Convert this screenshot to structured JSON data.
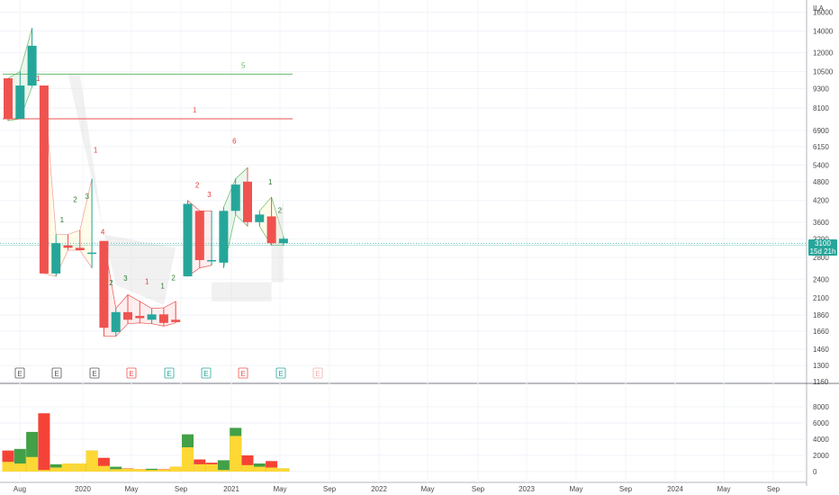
{
  "header": {
    "currency": "ILA"
  },
  "current_price": {
    "price": "3100",
    "countdown": "15d 21h"
  },
  "price_axis_ticks": [
    "16000",
    "14000",
    "12000",
    "10500",
    "9300",
    "8100",
    "6900",
    "6150",
    "5400",
    "4800",
    "4200",
    "3600",
    "3200",
    "2800",
    "2400",
    "2100",
    "1860",
    "1660",
    "1460",
    "1300",
    "1160"
  ],
  "volume_axis_ticks": [
    "8000",
    "6000",
    "4000",
    "2000",
    "0"
  ],
  "time_axis_labels": [
    "Aug",
    "2020",
    "May",
    "Sep",
    "2021",
    "May",
    "Sep",
    "2022",
    "May",
    "Sep",
    "2023",
    "May",
    "Sep",
    "2024",
    "May",
    "Sep"
  ],
  "earnings_markers": [
    {
      "label": "E",
      "kind": "neutral"
    },
    {
      "label": "E",
      "kind": "neutral"
    },
    {
      "label": "E",
      "kind": "neutral"
    },
    {
      "label": "E",
      "kind": "miss"
    },
    {
      "label": "E",
      "kind": "beat"
    },
    {
      "label": "E",
      "kind": "beat"
    },
    {
      "label": "E",
      "kind": "miss"
    },
    {
      "label": "E",
      "kind": "beat"
    },
    {
      "label": "E",
      "kind": "future"
    }
  ],
  "colors": {
    "up": "#26a69a",
    "down": "#ef5350",
    "vol_up": "#43a047",
    "vol_down": "#f44336",
    "vol_base": "#fdd835",
    "level_green": "#66bb6a",
    "level_red": "#ef5350"
  },
  "chart_data": {
    "type": "candlestick",
    "price_axis": "log",
    "ylim": [
      1160,
      17000
    ],
    "candles": [
      {
        "o": 10000,
        "h": 10000,
        "l": 7400,
        "c": 7500
      },
      {
        "o": 7500,
        "h": 10500,
        "l": 7500,
        "c": 9500
      },
      {
        "o": 9500,
        "h": 14300,
        "l": 9400,
        "c": 12600
      },
      {
        "o": 9500,
        "h": 9500,
        "l": 2500,
        "c": 2500
      },
      {
        "o": 2500,
        "h": 3300,
        "l": 2450,
        "c": 3100
      },
      {
        "o": 3050,
        "h": 3300,
        "l": 2950,
        "c": 3000
      },
      {
        "o": 3000,
        "h": 3400,
        "l": 2950,
        "c": 2950
      },
      {
        "o": 2900,
        "h": 4900,
        "l": 2600,
        "c": 2900
      },
      {
        "o": 3150,
        "h": 3150,
        "l": 1600,
        "c": 1700
      },
      {
        "o": 1650,
        "h": 1950,
        "l": 1600,
        "c": 1900
      },
      {
        "o": 1900,
        "h": 2150,
        "l": 1750,
        "c": 1800
      },
      {
        "o": 1850,
        "h": 2050,
        "l": 1760,
        "c": 1820
      },
      {
        "o": 1800,
        "h": 1950,
        "l": 1750,
        "c": 1870
      },
      {
        "o": 1870,
        "h": 1960,
        "l": 1720,
        "c": 1760
      },
      {
        "o": 1800,
        "h": 2050,
        "l": 1760,
        "c": 1770
      },
      {
        "o": 2450,
        "h": 4200,
        "l": 2450,
        "c": 4100
      },
      {
        "o": 3900,
        "h": 3900,
        "l": 2600,
        "c": 2750
      },
      {
        "o": 2750,
        "h": 3900,
        "l": 2650,
        "c": 2750
      },
      {
        "o": 2700,
        "h": 4000,
        "l": 2600,
        "c": 3900
      },
      {
        "o": 3900,
        "h": 4900,
        "l": 3800,
        "c": 4700
      },
      {
        "o": 4800,
        "h": 5300,
        "l": 3500,
        "c": 3600
      },
      {
        "o": 3600,
        "h": 3900,
        "l": 3500,
        "c": 3800
      },
      {
        "o": 3750,
        "h": 4300,
        "l": 3050,
        "c": 3100
      },
      {
        "o": 3100,
        "h": 3250,
        "l": 3050,
        "c": 3200
      }
    ],
    "volume": [
      {
        "total": 2600,
        "base": 1200,
        "up": false
      },
      {
        "total": 2800,
        "base": 1000,
        "up": true
      },
      {
        "total": 4900,
        "base": 1800,
        "up": true
      },
      {
        "total": 7200,
        "base": 200,
        "up": false
      },
      {
        "total": 900,
        "base": 500,
        "up": true
      },
      {
        "total": 1000,
        "base": 1000,
        "up": true
      },
      {
        "total": 1000,
        "base": 1000,
        "up": true
      },
      {
        "total": 2600,
        "base": 2600,
        "up": true
      },
      {
        "total": 1700,
        "base": 700,
        "up": false
      },
      {
        "total": 600,
        "base": 300,
        "up": true
      },
      {
        "total": 400,
        "base": 350,
        "up": false
      },
      {
        "total": 300,
        "base": 300,
        "up": false
      },
      {
        "total": 350,
        "base": 200,
        "up": true
      },
      {
        "total": 300,
        "base": 250,
        "up": false
      },
      {
        "total": 600,
        "base": 600,
        "up": false
      },
      {
        "total": 4600,
        "base": 3000,
        "up": true
      },
      {
        "total": 1500,
        "base": 900,
        "up": false
      },
      {
        "total": 1100,
        "base": 900,
        "up": false
      },
      {
        "total": 1400,
        "base": 200,
        "up": true
      },
      {
        "total": 5400,
        "base": 4400,
        "up": true
      },
      {
        "total": 2000,
        "base": 800,
        "up": false
      },
      {
        "total": 1000,
        "base": 600,
        "up": true
      },
      {
        "total": 1300,
        "base": 500,
        "up": false
      },
      {
        "total": 400,
        "base": 400,
        "up": true
      }
    ],
    "volume_ylim": [
      0,
      8000
    ],
    "levels": [
      {
        "price": 10300,
        "color": "green",
        "label": "5"
      },
      {
        "price": 7500,
        "color": "red",
        "label": "1"
      }
    ],
    "digits": [
      {
        "i": 2.5,
        "p": 9800,
        "t": "1",
        "c": "red"
      },
      {
        "i": 4.5,
        "p": 3600,
        "t": "1",
        "c": "green"
      },
      {
        "i": 5.6,
        "p": 4150,
        "t": "2",
        "c": "green"
      },
      {
        "i": 6.6,
        "p": 4250,
        "t": "3",
        "c": "green"
      },
      {
        "i": 7.3,
        "p": 5900,
        "t": "1",
        "c": "red"
      },
      {
        "i": 7.9,
        "p": 3300,
        "t": "4",
        "c": "red"
      },
      {
        "i": 8.6,
        "p": 2300,
        "t": "2",
        "c": "green"
      },
      {
        "i": 9.8,
        "p": 2370,
        "t": "3",
        "c": "green"
      },
      {
        "i": 11.6,
        "p": 2320,
        "t": "1",
        "c": "red"
      },
      {
        "i": 12.9,
        "p": 2250,
        "t": "1",
        "c": "green"
      },
      {
        "i": 13.8,
        "p": 2380,
        "t": "2",
        "c": "green"
      },
      {
        "i": 15.8,
        "p": 4600,
        "t": "2",
        "c": "red"
      },
      {
        "i": 16.8,
        "p": 4300,
        "t": "3",
        "c": "red"
      },
      {
        "i": 18.9,
        "p": 6300,
        "t": "6",
        "c": "red"
      },
      {
        "i": 21.9,
        "p": 4700,
        "t": "1",
        "c": "green"
      },
      {
        "i": 22.7,
        "p": 3850,
        "t": "2",
        "c": "green"
      }
    ]
  }
}
